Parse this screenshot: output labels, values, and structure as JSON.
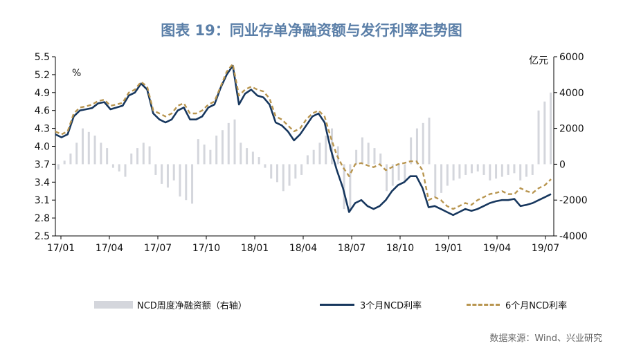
{
  "title": "图表 19：同业存单净融资额与发行利率走势图",
  "source": "数据来源：Wind、兴业研究",
  "legend": {
    "bar": "NCD周度净融资额（右轴）",
    "line3m": "3个月NCD利率",
    "line6m": "6个月NCD利率"
  },
  "colors": {
    "line3m": "#17375e",
    "line6m": "#b8954f",
    "bar": "#d4d6dc",
    "title": "#5b7fa8"
  },
  "chart_data": {
    "type": "line",
    "left_axis": {
      "unit": "%",
      "min": 2.5,
      "max": 5.5,
      "ticks": [
        "2.5",
        "2.8",
        "3.1",
        "3.4",
        "3.7",
        "4.0",
        "4.3",
        "4.6",
        "4.9",
        "5.2",
        "5.5"
      ]
    },
    "right_axis": {
      "unit": "亿元",
      "min": -4000,
      "max": 6000,
      "ticks": [
        "-4000",
        "-2000",
        "0",
        "2000",
        "4000",
        "6000"
      ]
    },
    "x_labels": [
      "17/01",
      "17/04",
      "17/07",
      "17/10",
      "18/01",
      "18/04",
      "18/07",
      "18/10",
      "19/01",
      "19/04",
      "19/07"
    ],
    "series": [
      {
        "name": "3个月NCD利率",
        "style": "solid",
        "values": [
          4.2,
          4.15,
          4.2,
          4.5,
          4.6,
          4.62,
          4.64,
          4.72,
          4.74,
          4.62,
          4.65,
          4.68,
          4.85,
          4.9,
          5.05,
          4.95,
          4.55,
          4.45,
          4.4,
          4.45,
          4.6,
          4.65,
          4.45,
          4.45,
          4.5,
          4.65,
          4.7,
          4.98,
          5.2,
          5.35,
          4.7,
          4.88,
          4.95,
          4.85,
          4.82,
          4.7,
          4.4,
          4.35,
          4.25,
          4.1,
          4.2,
          4.35,
          4.5,
          4.55,
          4.4,
          3.95,
          3.6,
          3.3,
          2.9,
          3.05,
          3.1,
          3.0,
          2.95,
          3.0,
          3.1,
          3.25,
          3.35,
          3.4,
          3.5,
          3.5,
          3.3,
          2.98,
          3.0,
          2.95,
          2.9,
          2.85,
          2.9,
          2.95,
          2.92,
          2.95,
          3.0,
          3.05,
          3.08,
          3.1,
          3.1,
          3.12,
          3.0,
          3.02,
          3.05,
          3.1,
          3.15,
          3.2
        ]
      },
      {
        "name": "6个月NCD利率",
        "style": "dashed",
        "values": [
          4.25,
          4.2,
          4.25,
          4.55,
          4.65,
          4.67,
          4.7,
          4.76,
          4.78,
          4.68,
          4.7,
          4.73,
          4.9,
          4.95,
          5.08,
          5.0,
          4.6,
          4.55,
          4.5,
          4.55,
          4.68,
          4.72,
          4.55,
          4.55,
          4.6,
          4.7,
          4.75,
          5.0,
          5.25,
          5.38,
          4.85,
          4.95,
          5.0,
          4.95,
          4.92,
          4.8,
          4.5,
          4.45,
          4.35,
          4.25,
          4.3,
          4.45,
          4.55,
          4.6,
          4.5,
          4.15,
          3.85,
          3.65,
          3.5,
          3.7,
          3.72,
          3.68,
          3.65,
          3.7,
          3.6,
          3.65,
          3.7,
          3.72,
          3.75,
          3.75,
          3.6,
          3.1,
          3.15,
          3.1,
          3.0,
          2.95,
          3.0,
          3.05,
          3.02,
          3.1,
          3.15,
          3.2,
          3.22,
          3.25,
          3.2,
          3.2,
          3.3,
          3.25,
          3.22,
          3.3,
          3.35,
          3.45
        ]
      }
    ],
    "bars": {
      "name": "NCD周度净融资额（右轴）",
      "values": [
        -300,
        200,
        600,
        1200,
        2000,
        1800,
        1600,
        1200,
        900,
        -200,
        -400,
        -700,
        600,
        900,
        1200,
        1000,
        -600,
        -1100,
        -1300,
        -900,
        -1800,
        -2000,
        -2200,
        1400,
        1100,
        800,
        1600,
        1900,
        2300,
        2500,
        1200,
        900,
        700,
        400,
        -200,
        -800,
        -1000,
        -1500,
        -1200,
        -800,
        -600,
        500,
        800,
        1200,
        1600,
        2000,
        1000,
        -2500,
        -2600,
        800,
        1500,
        1200,
        900,
        600,
        -1500,
        -1200,
        -900,
        -1000,
        1500,
        2000,
        2300,
        2600,
        -1800,
        -1600,
        -1200,
        -900,
        -800,
        -600,
        -500,
        -400,
        -600,
        -900,
        -800,
        -700,
        -600,
        -500,
        -900,
        -700,
        -600,
        3000,
        3500,
        4000
      ]
    }
  }
}
